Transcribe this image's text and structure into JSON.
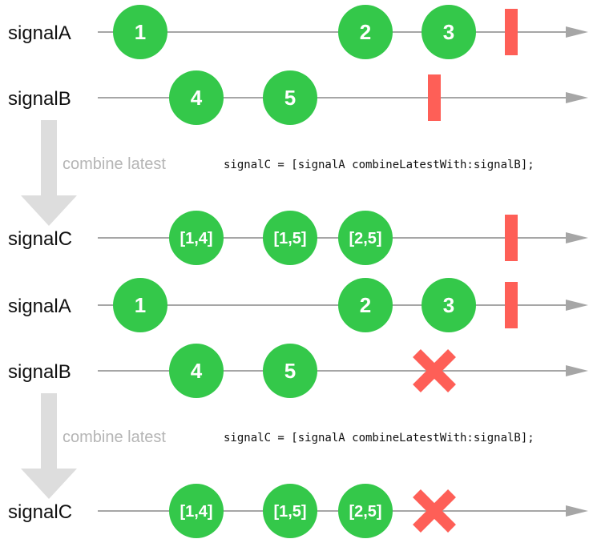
{
  "colors": {
    "event": "#34c84a",
    "terminal": "#fe5f57",
    "timeline": "#a6a6a6",
    "operator_arrow": "#dddddd",
    "label": "#111111",
    "operator_text": "#b5b5b5"
  },
  "icons": {
    "completed": "completed-bar-icon",
    "error": "error-x-icon",
    "flow": "down-arrow-icon"
  },
  "diagrams": [
    {
      "rows": [
        {
          "name": "signalA",
          "events": [
            "1",
            "2",
            "3"
          ],
          "terminal": "completed"
        },
        {
          "name": "signalB",
          "events": [
            "4",
            "5"
          ],
          "terminal": "completed"
        }
      ],
      "operator": {
        "label": "combine latest",
        "code": "signalC = [signalA combineLatestWith:signalB];"
      },
      "result": {
        "name": "signalC",
        "events": [
          "[1,4]",
          "[1,5]",
          "[2,5]"
        ],
        "terminal": "completed"
      }
    },
    {
      "rows": [
        {
          "name": "signalA",
          "events": [
            "1",
            "2",
            "3"
          ],
          "terminal": "completed"
        },
        {
          "name": "signalB",
          "events": [
            "4",
            "5"
          ],
          "terminal": "error"
        }
      ],
      "operator": {
        "label": "combine latest",
        "code": "signalC = [signalA combineLatestWith:signalB];"
      },
      "result": {
        "name": "signalC",
        "events": [
          "[1,4]",
          "[1,5]",
          "[2,5]"
        ],
        "terminal": "error"
      }
    }
  ]
}
